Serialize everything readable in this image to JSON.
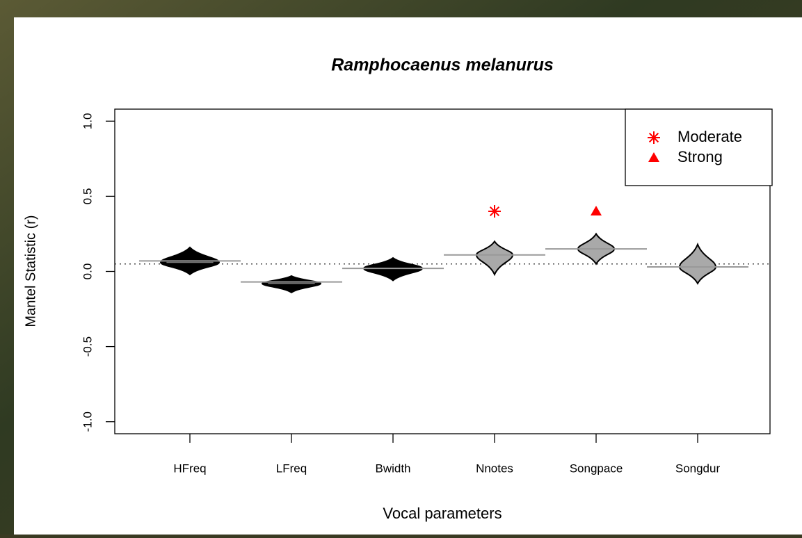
{
  "chart_data": {
    "type": "violin",
    "title": "Ramphocaenus melanurus",
    "xlabel": "Vocal parameters",
    "ylabel": "Mantel Statistic (r)",
    "categories": [
      "HFreq",
      "LFreq",
      "Bwidth",
      "Nnotes",
      "Songpace",
      "Songdur"
    ],
    "values": [
      0.07,
      -0.07,
      0.02,
      0.11,
      0.15,
      0.03
    ],
    "ranges": [
      [
        -0.02,
        0.16
      ],
      [
        -0.14,
        -0.03
      ],
      [
        -0.06,
        0.09
      ],
      [
        -0.02,
        0.2
      ],
      [
        0.05,
        0.25
      ],
      [
        -0.08,
        0.18
      ]
    ],
    "medians": [
      0.06,
      -0.08,
      0.02,
      0.11,
      0.15,
      0.03
    ],
    "colors": [
      "#000000",
      "#000000",
      "#000000",
      "#a9a9a9",
      "#a9a9a9",
      "#a9a9a9"
    ],
    "markers": [
      {
        "name": "Moderate",
        "marker": "asterisk",
        "color": "#ff0000",
        "values": [
          null,
          null,
          null,
          0.4,
          null,
          null
        ]
      },
      {
        "name": "Strong",
        "marker": "triangle",
        "color": "#ff0000",
        "values": [
          null,
          null,
          null,
          null,
          0.4,
          null
        ]
      }
    ],
    "hline": 0.05,
    "ylim": [
      -1.08,
      1.08
    ],
    "yticks": [
      {
        "value": -1,
        "label": "-1.0"
      },
      -0.5,
      {
        "value": 0,
        "label": "0.0"
      },
      0.5,
      {
        "value": 1,
        "label": "1.0"
      }
    ],
    "legend": "top-right"
  }
}
